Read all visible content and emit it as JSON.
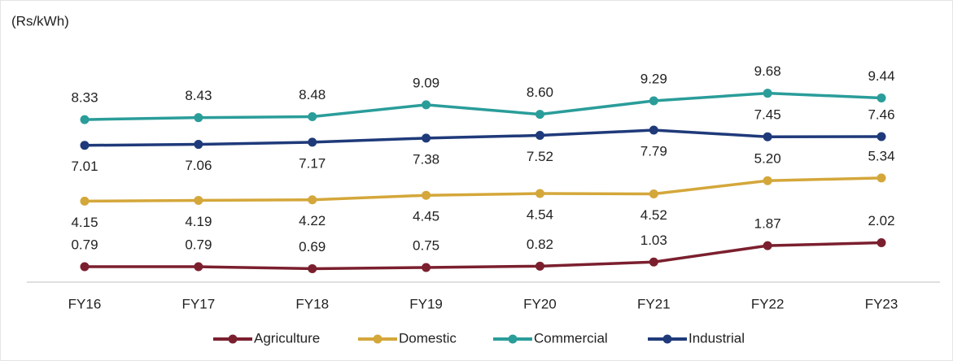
{
  "chart_data": {
    "type": "line",
    "y_axis_label": "(Rs/kWh)",
    "categories": [
      "FY16",
      "FY17",
      "FY18",
      "FY19",
      "FY20",
      "FY21",
      "FY22",
      "FY23"
    ],
    "series": [
      {
        "name": "Agriculture",
        "color": "#7b1f2e",
        "values": [
          0.79,
          0.79,
          0.69,
          0.75,
          0.82,
          1.03,
          1.87,
          2.02
        ]
      },
      {
        "name": "Domestic",
        "color": "#d4a73a",
        "values": [
          4.15,
          4.19,
          4.22,
          4.45,
          4.54,
          4.52,
          5.2,
          5.34
        ]
      },
      {
        "name": "Commercial",
        "color": "#2a9d9a",
        "values": [
          8.33,
          8.43,
          8.48,
          9.09,
          8.6,
          9.29,
          9.68,
          9.44
        ]
      },
      {
        "name": "Industrial",
        "color": "#1f3a7a",
        "values": [
          7.01,
          7.06,
          7.17,
          7.38,
          7.52,
          7.79,
          7.45,
          7.46
        ]
      }
    ],
    "value_labels": [
      [
        "0.79",
        "0.79",
        "0.69",
        "0.75",
        "0.82",
        "1.03",
        "1.87",
        "2.02"
      ],
      [
        "4.15",
        "4.19",
        "4.22",
        "4.45",
        "4.54",
        "4.52",
        "5.20",
        "5.34"
      ],
      [
        "8.33",
        "8.43",
        "8.48",
        "9.09",
        "8.60",
        "9.29",
        "9.68",
        "9.44"
      ],
      [
        "7.01",
        "7.06",
        "7.17",
        "7.38",
        "7.52",
        "7.79",
        "7.45",
        "7.46"
      ]
    ],
    "ylim": [
      0,
      13
    ],
    "legend": "bottom"
  }
}
